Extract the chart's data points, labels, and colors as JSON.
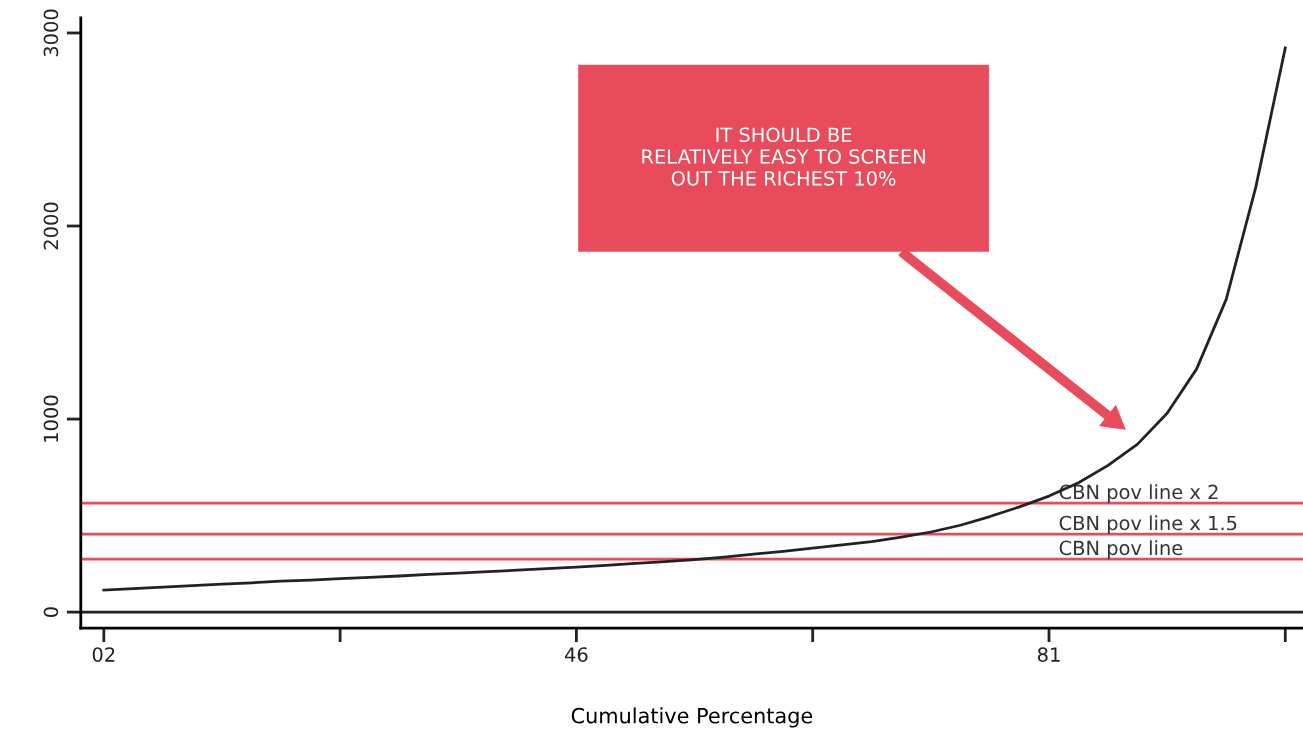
{
  "chart_data": {
    "type": "line",
    "xlabel": "Cumulative Percentage",
    "categories": [
      "02",
      null,
      null,
      null,
      null,
      null,
      null,
      null,
      null,
      null,
      null,
      null,
      null,
      null,
      null,
      null,
      "46",
      null,
      null,
      null,
      null,
      null,
      null,
      null,
      null,
      null,
      null,
      null,
      null,
      null,
      null,
      null,
      "81",
      null,
      null,
      null,
      null,
      null,
      null,
      null,
      null
    ],
    "series": [
      {
        "color": "#222222",
        "values": [
          114,
          122,
          130,
          137,
          145,
          152,
          160,
          166,
          173,
          180,
          187,
          195,
          202,
          210,
          217,
          225,
          233,
          242,
          252,
          262,
          272,
          285,
          300,
          315,
          332,
          348,
          365,
          388,
          415,
          450,
          495,
          545,
          601,
          670,
          760,
          870,
          1030,
          1260,
          1620,
          2200,
          2922
        ]
      }
    ],
    "ylim": [
      -83,
      3078
    ],
    "yticks": [
      0,
      1000,
      2000,
      3000
    ],
    "ref_lines": [
      {
        "axis": "y",
        "value": 0,
        "label": null,
        "color": "#222222"
      },
      {
        "axis": "y",
        "value": 275,
        "label": "CBN pov line",
        "color": "#e84c5c"
      },
      {
        "axis": "y",
        "value": 404,
        "label": "CBN pov line x 1.5",
        "color": "#e84c5c"
      },
      {
        "axis": "y",
        "value": 565,
        "label": "CBN pov line x 2",
        "color": "#e84c5c"
      }
    ],
    "annotations": [
      "IT SHOULD BE\nRELATIVELY EASY TO SCREEN\nOUT THE RICHEST 10%"
    ],
    "grid": false,
    "legend": false,
    "marker": "none",
    "line_style": "solid"
  }
}
